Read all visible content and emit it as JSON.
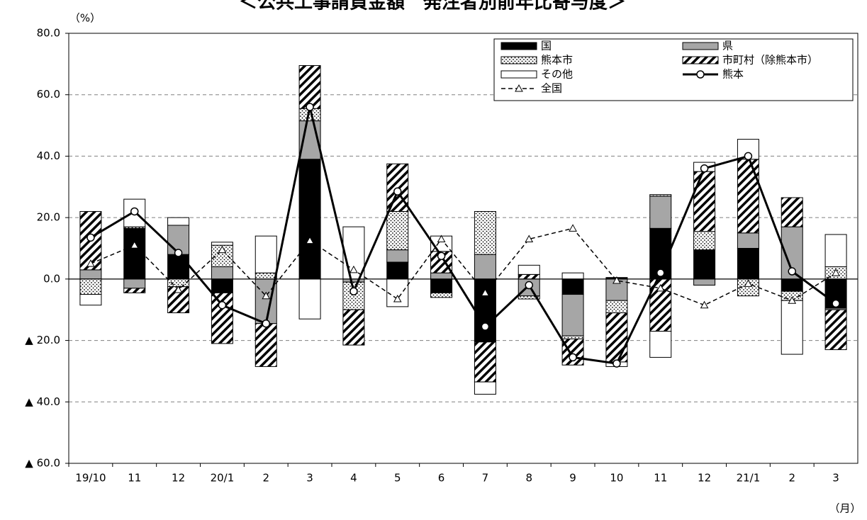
{
  "chart_data": {
    "type": "bar",
    "title": "＜公共工事請負金額　発注者別前年比寄与度＞",
    "y_unit": "（%）",
    "x_unit": "（月）",
    "categories": [
      "19/10",
      "11",
      "12",
      "20/1",
      "2",
      "3",
      "4",
      "5",
      "6",
      "7",
      "8",
      "9",
      "10",
      "11",
      "12",
      "21/1",
      "2",
      "3"
    ],
    "ylim": [
      -60,
      80
    ],
    "yticks": [
      {
        "value": -60,
        "label": "▲ 60.0"
      },
      {
        "value": -40,
        "label": "▲ 40.0"
      },
      {
        "value": -20,
        "label": "▲ 20.0"
      },
      {
        "value": 0,
        "label": "0.0"
      },
      {
        "value": 20,
        "label": "20.0"
      },
      {
        "value": 40,
        "label": "40.0"
      },
      {
        "value": 60,
        "label": "60.0"
      },
      {
        "value": 80,
        "label": "80.0"
      }
    ],
    "grid": true,
    "legend": "upper right",
    "series": [
      {
        "name": "国",
        "type": "bar",
        "color": "#000000",
        "values": [
          0,
          16.5,
          8,
          -4.5,
          0,
          39,
          0,
          5.5,
          -4.5,
          -20.5,
          0,
          -5,
          0.5,
          16.5,
          9.5,
          10,
          -4,
          -9.5
        ]
      },
      {
        "name": "県",
        "type": "bar",
        "color": "#a6a6a6",
        "values": [
          3,
          -3,
          9.5,
          4,
          -14.5,
          12.5,
          -1,
          4,
          2,
          8,
          -5.5,
          -13.5,
          -7,
          10.5,
          -2,
          5,
          17,
          -0.5
        ]
      },
      {
        "name": "熊本市",
        "type": "bar",
        "color": "#ffffff",
        "pattern": "dots",
        "values": [
          -5,
          0.5,
          -2.5,
          7,
          2,
          4,
          -9,
          12.5,
          -1.5,
          14,
          -1,
          -1,
          -4,
          0.5,
          6,
          -5.5,
          -3,
          4
        ]
      },
      {
        "name": "市町村（除熊本市）",
        "type": "bar",
        "color": "#ffffff",
        "pattern": "hatch",
        "values": [
          19,
          -1.5,
          -8.5,
          -16.5,
          -14,
          14,
          -11.5,
          15.5,
          7,
          -13,
          1.5,
          -8.5,
          -16,
          -17,
          19.5,
          24,
          9.5,
          -13
        ]
      },
      {
        "name": "その他",
        "type": "bar",
        "color": "#ffffff",
        "values": [
          -3.5,
          9,
          2.5,
          1,
          12,
          -13,
          17,
          -9,
          5,
          -4,
          3,
          2,
          -1.5,
          -8.5,
          3,
          6.5,
          -17.5,
          10.5
        ]
      },
      {
        "name": "熊本",
        "type": "line",
        "color": "#000000",
        "marker": "circle",
        "dash": "solid",
        "values": [
          13.5,
          22,
          8.5,
          -8.5,
          -14.5,
          56,
          -4,
          28.5,
          7.5,
          -15.5,
          -2,
          -25.5,
          -27.5,
          2,
          36,
          40,
          2.5,
          -8
        ]
      },
      {
        "name": "全国",
        "type": "line",
        "color": "#000000",
        "marker": "triangle",
        "dash": "dashed",
        "values": [
          5,
          11,
          -3.5,
          9.5,
          -5.5,
          12.5,
          3,
          -6.5,
          13,
          -4.5,
          13,
          16.5,
          -0.5,
          -3,
          -8.5,
          -1.5,
          -7,
          2
        ]
      }
    ]
  }
}
